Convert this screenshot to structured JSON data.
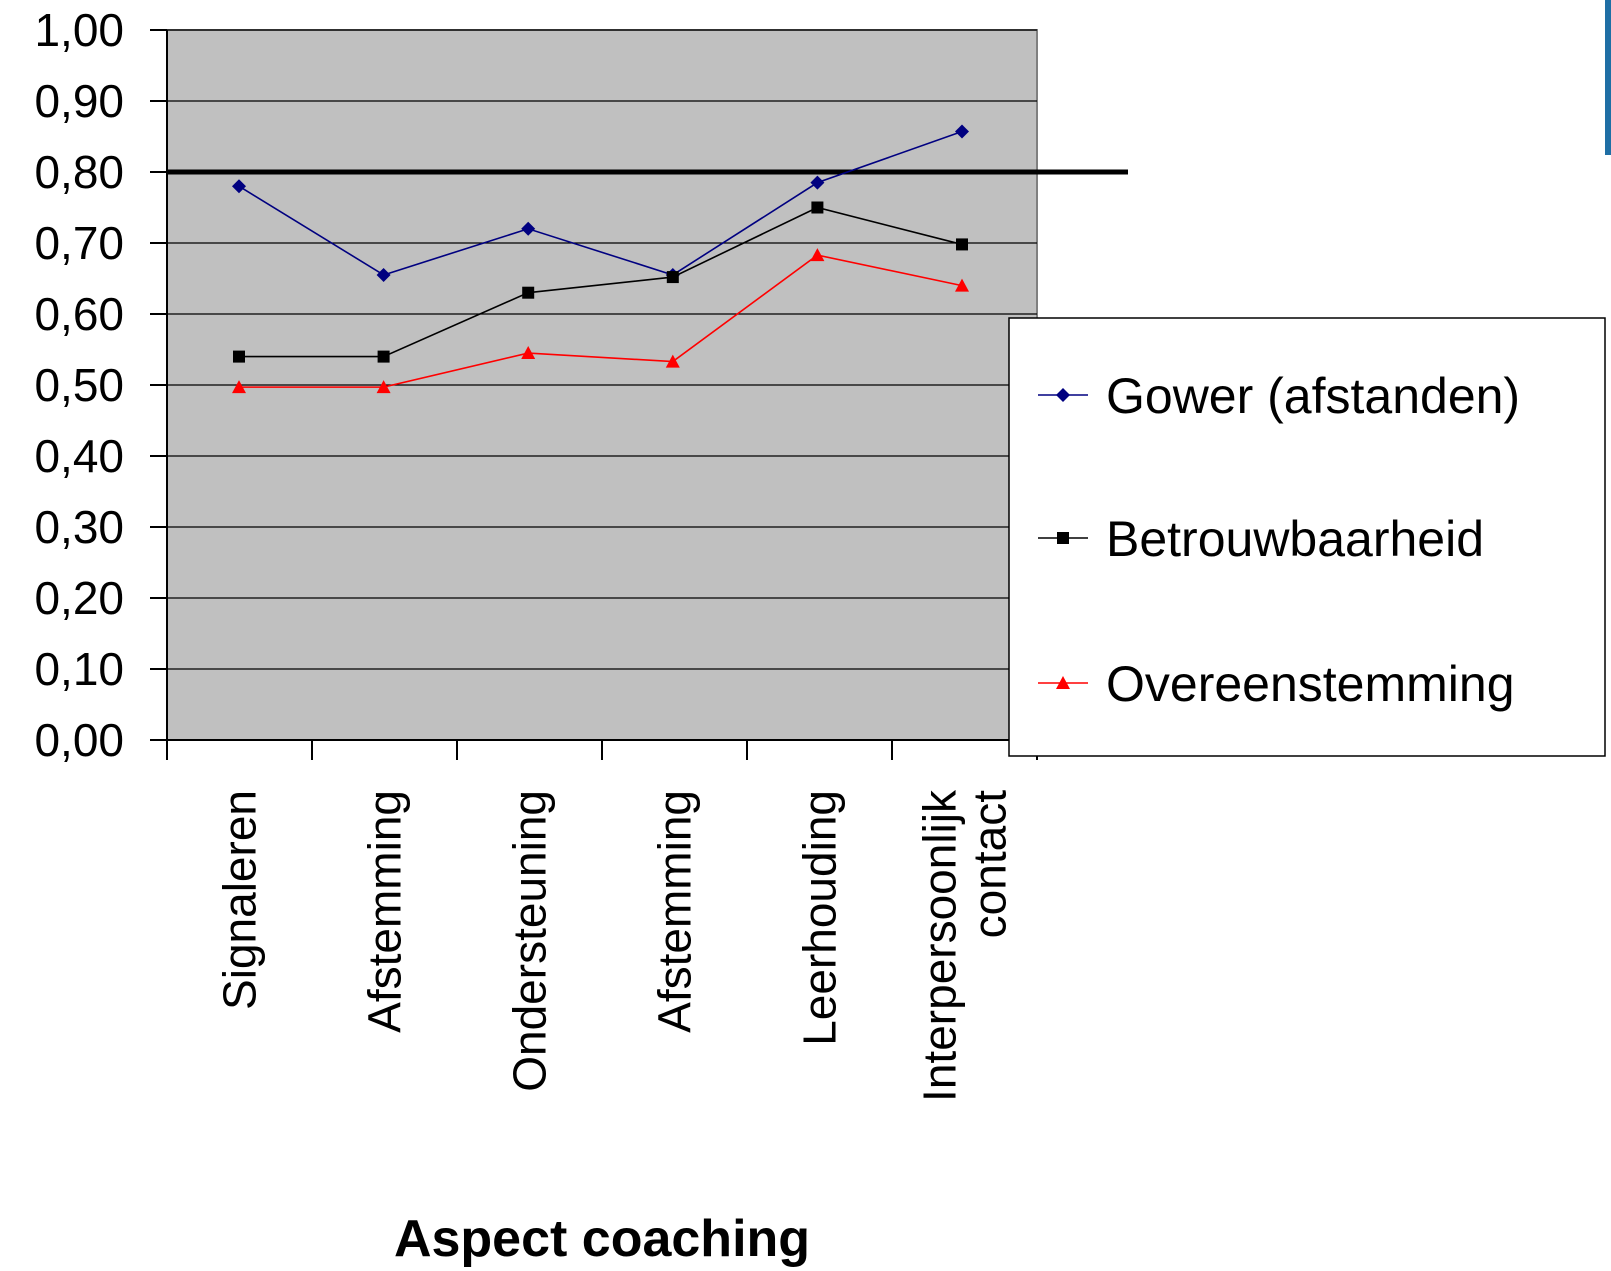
{
  "chart_data": {
    "type": "line",
    "title": "",
    "xlabel": "Aspect coaching",
    "ylabel": "",
    "categories": [
      [
        "Signaleren"
      ],
      [
        "Afstemming"
      ],
      [
        "Ondersteuning"
      ],
      [
        "Afstemming"
      ],
      [
        "Leerhouding"
      ],
      [
        "Interpersoonlijk",
        "contact"
      ]
    ],
    "ylim": [
      0,
      1
    ],
    "yticks": [
      "0,00",
      "0,10",
      "0,20",
      "0,30",
      "0,40",
      "0,50",
      "0,60",
      "0,70",
      "0,80",
      "0,90",
      "1,00"
    ],
    "reference_line": 0.8,
    "grid": true,
    "plot_background": "#c0c0c0",
    "legend_position": "right",
    "series": [
      {
        "name": "Gower (afstanden)",
        "values": [
          0.78,
          0.655,
          0.72,
          0.655,
          0.785,
          0.857
        ],
        "color": "#000080",
        "marker": "diamond"
      },
      {
        "name": "Betrouwbaarheid",
        "values": [
          0.54,
          0.54,
          0.63,
          0.652,
          0.75,
          0.698
        ],
        "color": "#000000",
        "marker": "square"
      },
      {
        "name": "Overeenstemming",
        "values": [
          0.497,
          0.497,
          0.545,
          0.533,
          0.683,
          0.64
        ],
        "color": "#ff0000",
        "marker": "triangle"
      }
    ]
  }
}
